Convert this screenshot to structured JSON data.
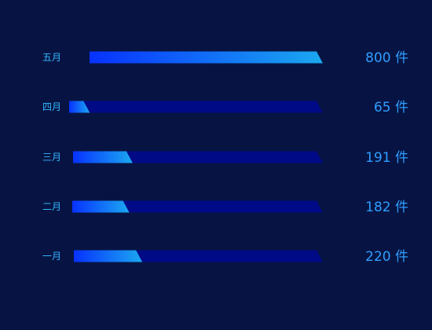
{
  "chart_data": {
    "type": "bar",
    "orientation": "horizontal",
    "categories": [
      "五月",
      "四月",
      "三月",
      "二月",
      "一月"
    ],
    "values": [
      800,
      65,
      191,
      182,
      220
    ],
    "value_labels": [
      "800 件",
      "65 件",
      "191 件",
      "182 件",
      "220 件"
    ],
    "xlim": [
      0,
      800
    ],
    "title": "",
    "xlabel": "",
    "ylabel": "",
    "grid": false
  },
  "colors": {
    "background": "#071443",
    "track": "#000a87",
    "bar_start": "#0732ff",
    "bar_end": "#1ba8f0",
    "category_text": "#34b5ff",
    "value_text": "#2f9dff"
  }
}
